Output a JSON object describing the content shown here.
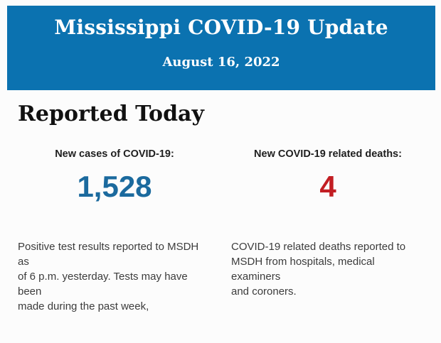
{
  "page": {
    "background": "#fcfcfc"
  },
  "banner": {
    "background": "#0b72b0",
    "title": "Mississippi COVID-19 Update",
    "date": "August 16, 2022",
    "text_color": "#ffffff"
  },
  "section": {
    "heading": "Reported Today"
  },
  "stats": [
    {
      "label": "New cases of COVID-19:",
      "value": "1,528",
      "value_color": "#1b6a9e",
      "description": "Positive test results reported to MSDH as\nof 6 p.m. yesterday. Tests may have been\nmade during the past week,"
    },
    {
      "label": "New COVID-19 related deaths:",
      "value": "4",
      "value_color": "#c21e23",
      "description": "COVID-19 related deaths reported to\nMSDH from hospitals, medical examiners\nand coroners."
    }
  ]
}
